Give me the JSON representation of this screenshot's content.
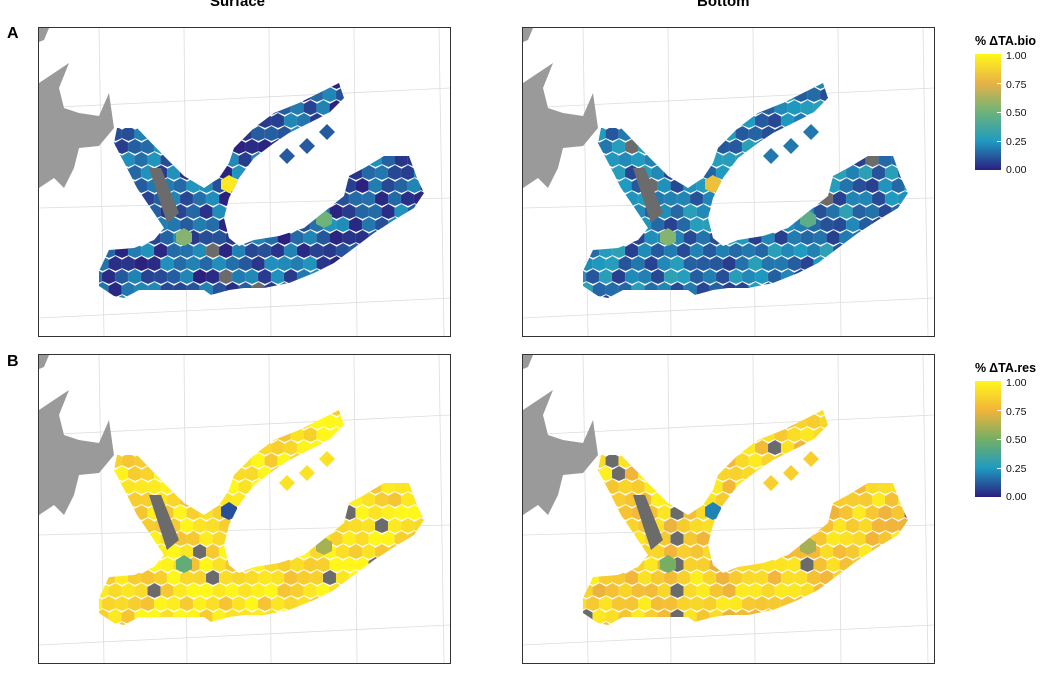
{
  "columns": {
    "surface": "Surface",
    "bottom": "Bottom"
  },
  "rows": {
    "a": "A",
    "b": "B"
  },
  "legend_bio": {
    "title": "% ΔTA.bio",
    "ticks": [
      "1.00",
      "0.75",
      "0.50",
      "0.25",
      "0.00"
    ],
    "colors": [
      "#fff71a",
      "#e8b245",
      "#6db37a",
      "#1f9bc1",
      "#2a1f7e"
    ]
  },
  "legend_res": {
    "title": "% ΔTA.res",
    "ticks": [
      "1.00",
      "0.75",
      "0.50",
      "0.25",
      "0.00"
    ],
    "colors": [
      "#fff71a",
      "#f3b43a",
      "#74af64",
      "#1f9bc1",
      "#2a1f7e"
    ]
  },
  "map": {
    "land_color": "#9a9a9a",
    "missing_color": "#6b6b6b",
    "graticule_color": "#dddddd"
  },
  "panels": [
    {
      "id": "surface-bio",
      "row": "A",
      "column": "Surface",
      "variable": "% ΔTA.bio",
      "mean_fraction": 0.12,
      "accent_cells": [
        {
          "fraction": 0.95
        },
        {
          "fraction": 0.55
        },
        {
          "fraction": 0.88
        },
        {
          "fraction": 0.5
        }
      ]
    },
    {
      "id": "bottom-bio",
      "row": "A",
      "column": "Bottom",
      "variable": "% ΔTA.bio",
      "mean_fraction": 0.18,
      "accent_cells": [
        {
          "fraction": 0.8
        },
        {
          "fraction": 0.55
        },
        {
          "fraction": 0.75
        },
        {
          "fraction": 0.45
        }
      ]
    },
    {
      "id": "surface-res",
      "row": "B",
      "column": "Surface",
      "variable": "% ΔTA.res",
      "mean_fraction": 0.92,
      "accent_cells": [
        {
          "fraction": 0.1
        },
        {
          "fraction": 0.45
        },
        {
          "fraction": 0.25
        },
        {
          "fraction": 0.6
        }
      ]
    },
    {
      "id": "bottom-res",
      "row": "B",
      "column": "Bottom",
      "variable": "% ΔTA.res",
      "mean_fraction": 0.85,
      "accent_cells": [
        {
          "fraction": 0.2
        },
        {
          "fraction": 0.5
        },
        {
          "fraction": 0.3
        },
        {
          "fraction": 0.6
        }
      ]
    }
  ]
}
